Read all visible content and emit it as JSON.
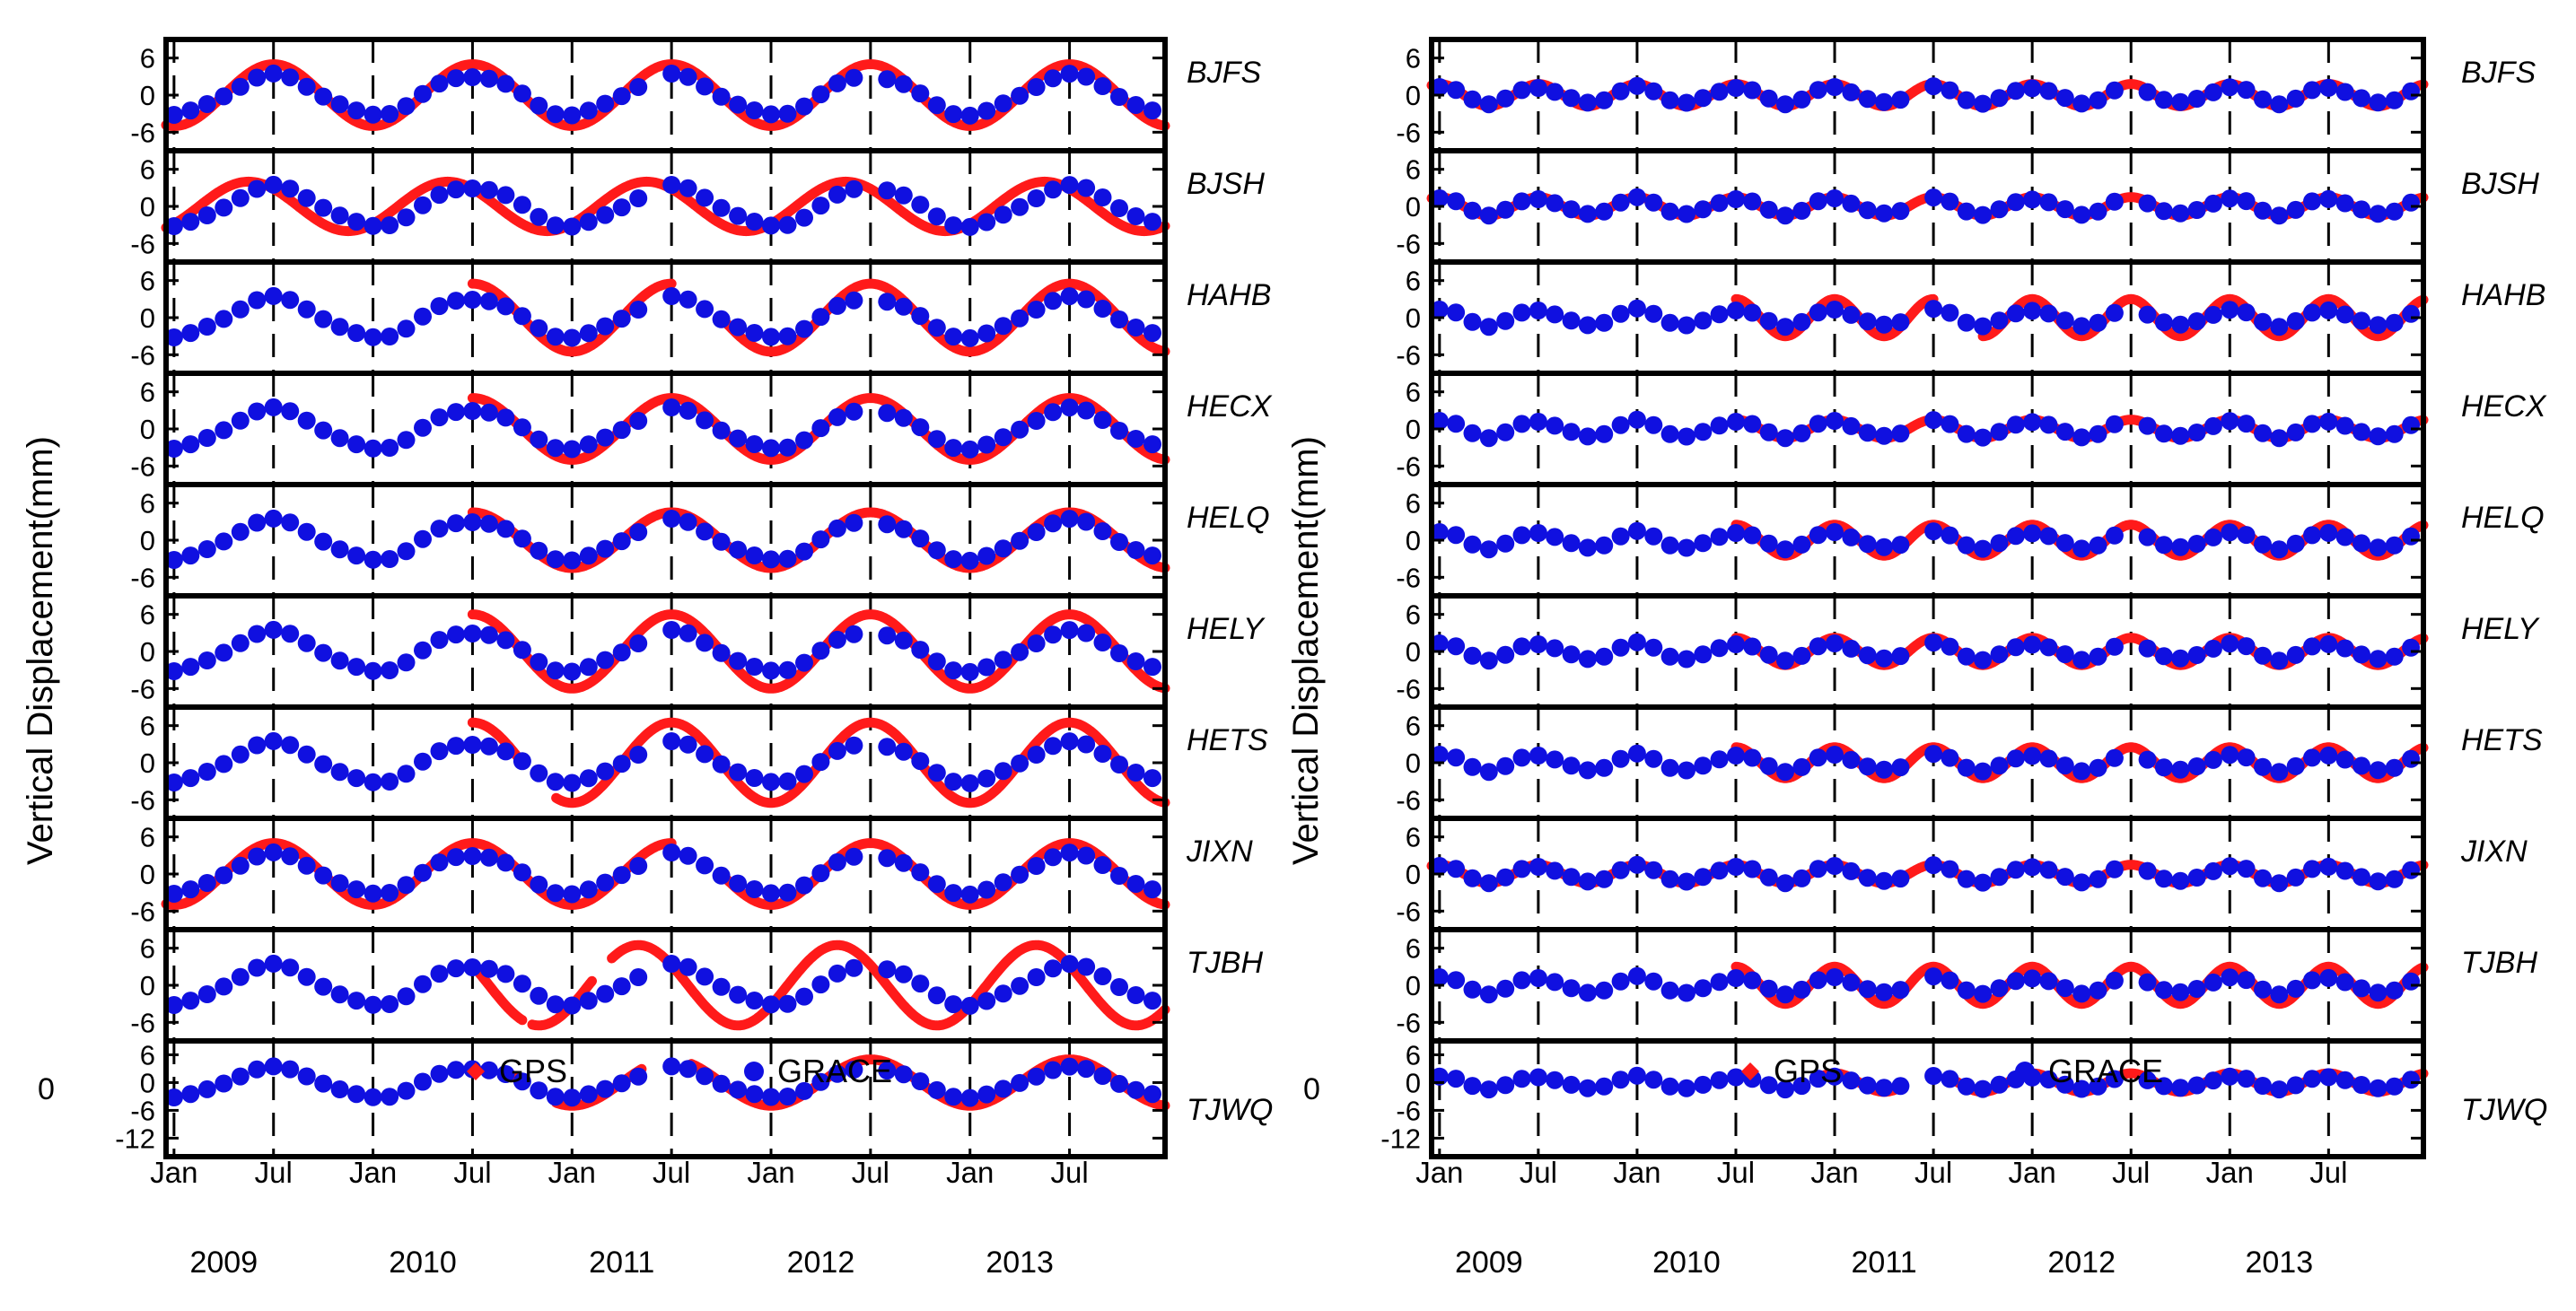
{
  "chart_data": [
    {
      "type": "scatter",
      "panel": "left",
      "ylabel": "Vertical Displacement(mm)",
      "stations": [
        "BJFS",
        "BJSH",
        "HAHB",
        "HECX",
        "HELQ",
        "HELY",
        "HETS",
        "JIXN",
        "TJBH",
        "TJWQ"
      ],
      "yticks": [
        "6",
        "0",
        "-6"
      ],
      "bottom_yticks": [
        "6",
        "0",
        "-6",
        "-12"
      ],
      "bottom_ylim": [
        -16,
        9
      ],
      "ylim": [
        -9,
        9
      ],
      "extra_label": "0",
      "xlim": [
        2008.96,
        2013.98
      ],
      "month_ticks": [
        "Jan",
        "Jul",
        "Jan",
        "Jul",
        "Jan",
        "Jul",
        "Jan",
        "Jul",
        "Jan",
        "Jul"
      ],
      "years": [
        "2009",
        "2010",
        "2011",
        "2012",
        "2013"
      ],
      "legend": {
        "gps": "GPS",
        "grace": "GRACE"
      },
      "series": {
        "grace": {
          "name": "GRACE",
          "color": "#1010e0",
          "amplitude_mm": 3.2,
          "peak_month": 6.5,
          "interval_months": 1
        },
        "gps": {
          "name": "GPS",
          "color": "#ff1a1a",
          "amplitudes_mm": [
            5.0,
            4.0,
            5.5,
            5.0,
            4.5,
            6.0,
            6.5,
            5.0,
            6.5,
            5.0
          ],
          "phase_shift_months": [
            0,
            -1.5,
            0,
            0,
            0,
            0,
            0,
            0,
            -2,
            0
          ],
          "segments": [
            [
              [
                2008.96,
                2013.98
              ]
            ],
            [
              [
                2008.96,
                2013.98
              ]
            ],
            [
              [
                2010.5,
                2011.5
              ],
              [
                2011.75,
                2013.98
              ]
            ],
            [
              [
                2010.5,
                2013.98
              ]
            ],
            [
              [
                2010.5,
                2013.98
              ]
            ],
            [
              [
                2010.5,
                2013.98
              ]
            ],
            [
              [
                2010.5,
                2010.75
              ],
              [
                2010.92,
                2013.98
              ]
            ],
            [
              [
                2008.96,
                2011.0
              ],
              [
                2011.0,
                2011.5
              ],
              [
                2011.75,
                2013.98
              ]
            ],
            [
              [
                2010.5,
                2010.75
              ],
              [
                2010.8,
                2011.1
              ],
              [
                2011.2,
                2013.98
              ]
            ],
            [
              [
                2010.7,
                2010.75
              ],
              [
                2010.92,
                2011.35
              ],
              [
                2011.6,
                2013.98
              ]
            ]
          ]
        }
      }
    },
    {
      "type": "scatter",
      "panel": "right",
      "ylabel": "Vertical Displacement(mm)",
      "stations": [
        "BJFS",
        "BJSH",
        "HAHB",
        "HECX",
        "HELQ",
        "HELY",
        "HETS",
        "JIXN",
        "TJBH",
        "TJWQ"
      ],
      "yticks": [
        "6",
        "0",
        "-6"
      ],
      "bottom_yticks": [
        "6",
        "0",
        "-6",
        "-12"
      ],
      "bottom_ylim": [
        -16,
        9
      ],
      "ylim": [
        -9,
        9
      ],
      "extra_label": "0",
      "xlim": [
        2008.96,
        2013.98
      ],
      "month_ticks": [
        "Jan",
        "Jul",
        "Jan",
        "Jul",
        "Jan",
        "Jul",
        "Jan",
        "Jul",
        "Jan",
        "Jul"
      ],
      "years": [
        "2009",
        "2010",
        "2011",
        "2012",
        "2013"
      ],
      "legend": {
        "gps": "GPS",
        "grace": "GRACE"
      },
      "series": {
        "grace": {
          "name": "GRACE",
          "color": "#1010e0",
          "amplitude_mm": 1.3,
          "period_months": 6,
          "interval_months": 1
        },
        "gps": {
          "name": "GPS",
          "color": "#ff1a1a",
          "amplitudes_mm": [
            1.8,
            1.5,
            3.0,
            1.5,
            2.5,
            2.2,
            2.5,
            1.5,
            3.0,
            2.0
          ],
          "period_months": 6,
          "segments": [
            [
              [
                2008.96,
                2013.98
              ]
            ],
            [
              [
                2008.96,
                2013.98
              ]
            ],
            [
              [
                2010.5,
                2011.5
              ],
              [
                2011.75,
                2013.98
              ]
            ],
            [
              [
                2010.5,
                2013.98
              ]
            ],
            [
              [
                2010.5,
                2013.98
              ]
            ],
            [
              [
                2010.5,
                2013.98
              ]
            ],
            [
              [
                2010.5,
                2013.98
              ]
            ],
            [
              [
                2008.96,
                2013.98
              ]
            ],
            [
              [
                2010.5,
                2013.98
              ]
            ],
            [
              [
                2010.92,
                2011.35
              ],
              [
                2011.6,
                2013.98
              ]
            ]
          ]
        }
      }
    }
  ]
}
